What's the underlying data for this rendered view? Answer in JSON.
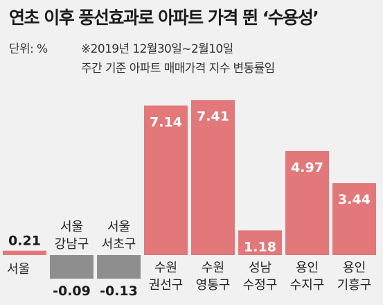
{
  "header": {
    "title": "연초 이후 풍선효과로 아파트 가격 뛴 ‘수용성’",
    "unit_label": "단위: %",
    "period": "※2019년 12월30일~2월10일",
    "description": "주간 기준 아파트 매매가격 지수 변동률임"
  },
  "colors": {
    "positive": "#e2787a",
    "negative": "#8e8e8e",
    "background": "#f1f1f1"
  },
  "chart_data": {
    "type": "bar",
    "categories": [
      {
        "label": [
          "서울"
        ],
        "value_label": "0.21"
      },
      {
        "label": [
          "서울",
          "강남구"
        ],
        "value_label": "-0.09"
      },
      {
        "label": [
          "서울",
          "서초구"
        ],
        "value_label": "-0.13"
      },
      {
        "label": [
          "수원",
          "권선구"
        ],
        "value_label": "7.14"
      },
      {
        "label": [
          "수원",
          "영통구"
        ],
        "value_label": "7.41"
      },
      {
        "label": [
          "성남",
          "수정구"
        ],
        "value_label": "1.18"
      },
      {
        "label": [
          "용인",
          "수지구"
        ],
        "value_label": "4.97"
      },
      {
        "label": [
          "용인",
          "기흥구"
        ],
        "value_label": "3.44"
      }
    ],
    "values": [
      0.21,
      -0.09,
      -0.13,
      7.14,
      7.41,
      1.18,
      4.97,
      3.44
    ]
  }
}
